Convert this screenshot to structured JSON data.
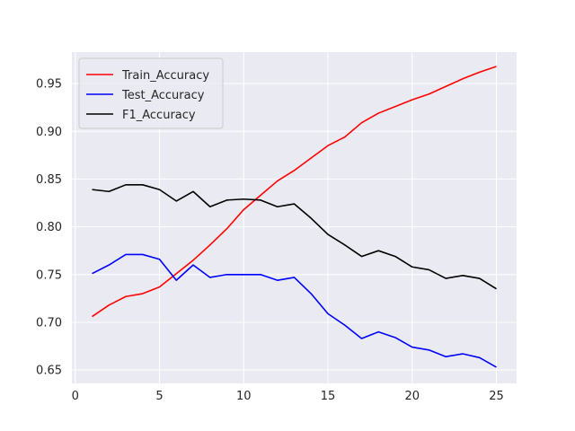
{
  "chart_data": {
    "type": "line",
    "title": "",
    "xlabel": "",
    "ylabel": "",
    "xlim": [
      -0.2,
      26.2
    ],
    "ylim": [
      0.636,
      0.983
    ],
    "grid": true,
    "legend_position": "top-left",
    "x_ticks": [
      0,
      5,
      10,
      15,
      20,
      25
    ],
    "y_ticks": [
      0.65,
      0.7,
      0.75,
      0.8,
      0.85,
      0.9,
      0.95
    ],
    "x_tick_labels": [
      "0",
      "5",
      "10",
      "15",
      "20",
      "25"
    ],
    "y_tick_labels": [
      "0.65",
      "0.70",
      "0.75",
      "0.80",
      "0.85",
      "0.90",
      "0.95"
    ],
    "x": [
      1,
      2,
      3,
      4,
      5,
      6,
      7,
      8,
      9,
      10,
      11,
      12,
      13,
      14,
      15,
      16,
      17,
      18,
      19,
      20,
      21,
      22,
      23,
      24,
      25
    ],
    "series": [
      {
        "name": "Train_Accuracy",
        "color": "#ff0000",
        "values": [
          0.706,
          0.718,
          0.727,
          0.73,
          0.737,
          0.751,
          0.765,
          0.781,
          0.798,
          0.818,
          0.833,
          0.848,
          0.859,
          0.872,
          0.885,
          0.894,
          0.909,
          0.919,
          0.926,
          0.933,
          0.939,
          0.947,
          0.955,
          0.962,
          0.968
        ]
      },
      {
        "name": "Test_Accuracy",
        "color": "#0000ff",
        "values": [
          0.751,
          0.76,
          0.771,
          0.771,
          0.766,
          0.744,
          0.76,
          0.747,
          0.75,
          0.75,
          0.75,
          0.744,
          0.747,
          0.73,
          0.709,
          0.697,
          0.683,
          0.69,
          0.684,
          0.674,
          0.671,
          0.664,
          0.667,
          0.663,
          0.653
        ]
      },
      {
        "name": "F1_Accuracy",
        "color": "#000000",
        "values": [
          0.839,
          0.837,
          0.844,
          0.844,
          0.839,
          0.827,
          0.837,
          0.821,
          0.828,
          0.829,
          0.828,
          0.821,
          0.824,
          0.809,
          0.792,
          0.781,
          0.769,
          0.775,
          0.769,
          0.758,
          0.755,
          0.746,
          0.749,
          0.746,
          0.735
        ]
      }
    ],
    "colors": {
      "plot_background": "#eaeaf2",
      "grid": "#ffffff",
      "text": "#262626"
    }
  }
}
